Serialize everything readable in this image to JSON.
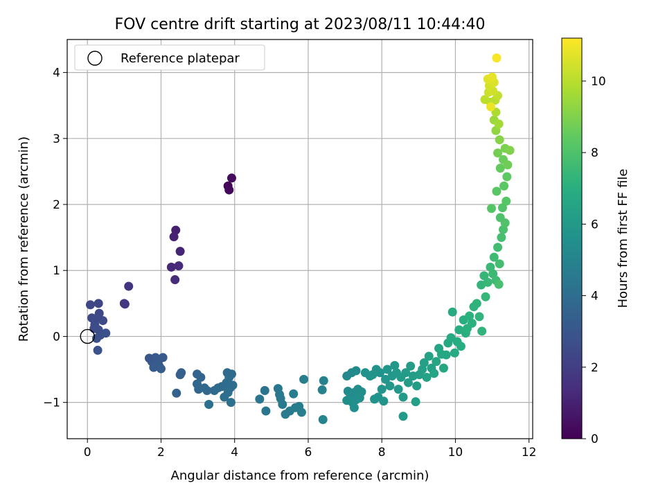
{
  "chart_data": {
    "type": "scatter",
    "title": "FOV centre drift starting at 2023/08/11 10:44:40",
    "xlabel": "Angular distance from reference (arcmin)",
    "ylabel": "Rotation from reference (arcmin)",
    "colorbar_label": "Hours from first FF file",
    "xlim": [
      -0.55,
      12.1
    ],
    "ylim": [
      -1.55,
      4.5
    ],
    "clim": [
      0,
      11.2
    ],
    "x_ticks": [
      0,
      2,
      4,
      6,
      8,
      10,
      12
    ],
    "y_ticks": [
      -1,
      0,
      1,
      2,
      3,
      4
    ],
    "colorbar_ticks": [
      0,
      2,
      4,
      6,
      8,
      10
    ],
    "grid": true,
    "legend": {
      "position": "top-left",
      "entries": [
        "Reference platepar"
      ]
    },
    "reference_point": {
      "x": 0,
      "y": 0
    },
    "colormap": "viridis",
    "points": [
      {
        "x": 3.82,
        "y": 2.28,
        "c": 0.1
      },
      {
        "x": 3.85,
        "y": 2.22,
        "c": 0.2
      },
      {
        "x": 3.92,
        "y": 2.4,
        "c": 0.3
      },
      {
        "x": 2.4,
        "y": 1.61,
        "c": 0.9
      },
      {
        "x": 2.35,
        "y": 1.51,
        "c": 1.0
      },
      {
        "x": 2.52,
        "y": 1.29,
        "c": 1.1
      },
      {
        "x": 2.28,
        "y": 1.05,
        "c": 1.2
      },
      {
        "x": 2.48,
        "y": 1.07,
        "c": 1.25
      },
      {
        "x": 2.38,
        "y": 0.86,
        "c": 1.3
      },
      {
        "x": 1.12,
        "y": 0.76,
        "c": 1.6
      },
      {
        "x": 1.0,
        "y": 0.5,
        "c": 1.7
      },
      {
        "x": 1.02,
        "y": 0.49,
        "c": 1.75
      },
      {
        "x": 0.08,
        "y": 0.48,
        "c": 2.3
      },
      {
        "x": 0.3,
        "y": 0.5,
        "c": 2.3
      },
      {
        "x": 0.32,
        "y": 0.35,
        "c": 2.4
      },
      {
        "x": 0.12,
        "y": 0.28,
        "c": 2.4
      },
      {
        "x": 0.22,
        "y": 0.27,
        "c": 2.5
      },
      {
        "x": 0.42,
        "y": 0.24,
        "c": 2.5
      },
      {
        "x": 0.2,
        "y": 0.18,
        "c": 2.55
      },
      {
        "x": 0.18,
        "y": 0.12,
        "c": 2.6
      },
      {
        "x": 0.3,
        "y": 0.1,
        "c": 2.6
      },
      {
        "x": 0.35,
        "y": 0.02,
        "c": 2.65
      },
      {
        "x": 0.5,
        "y": 0.05,
        "c": 2.7
      },
      {
        "x": 0.25,
        "y": -0.03,
        "c": 2.7
      },
      {
        "x": 0.28,
        "y": -0.21,
        "c": 2.8
      },
      {
        "x": 1.68,
        "y": -0.33,
        "c": 3.0
      },
      {
        "x": 1.75,
        "y": -0.38,
        "c": 3.05
      },
      {
        "x": 1.85,
        "y": -0.32,
        "c": 3.1
      },
      {
        "x": 1.92,
        "y": -0.4,
        "c": 3.1
      },
      {
        "x": 2.05,
        "y": -0.32,
        "c": 3.15
      },
      {
        "x": 1.8,
        "y": -0.47,
        "c": 3.2
      },
      {
        "x": 1.88,
        "y": -0.44,
        "c": 3.2
      },
      {
        "x": 1.95,
        "y": -0.45,
        "c": 3.25
      },
      {
        "x": 2.0,
        "y": -0.49,
        "c": 3.3
      },
      {
        "x": 2.55,
        "y": -0.55,
        "c": 3.4
      },
      {
        "x": 2.52,
        "y": -0.58,
        "c": 3.4
      },
      {
        "x": 2.42,
        "y": -0.86,
        "c": 3.5
      },
      {
        "x": 2.98,
        "y": -0.57,
        "c": 3.6
      },
      {
        "x": 3.08,
        "y": -0.62,
        "c": 3.6
      },
      {
        "x": 2.98,
        "y": -0.72,
        "c": 3.7
      },
      {
        "x": 3.02,
        "y": -0.8,
        "c": 3.7
      },
      {
        "x": 3.18,
        "y": -0.78,
        "c": 3.75
      },
      {
        "x": 3.25,
        "y": -0.82,
        "c": 3.8
      },
      {
        "x": 3.45,
        "y": -0.82,
        "c": 3.8
      },
      {
        "x": 3.55,
        "y": -0.78,
        "c": 3.85
      },
      {
        "x": 3.65,
        "y": -0.76,
        "c": 3.85
      },
      {
        "x": 3.8,
        "y": -0.55,
        "c": 3.9
      },
      {
        "x": 3.92,
        "y": -0.57,
        "c": 3.9
      },
      {
        "x": 3.85,
        "y": -0.62,
        "c": 3.95
      },
      {
        "x": 3.78,
        "y": -0.7,
        "c": 3.95
      },
      {
        "x": 3.88,
        "y": -0.78,
        "c": 4.0
      },
      {
        "x": 3.95,
        "y": -0.74,
        "c": 4.0
      },
      {
        "x": 3.82,
        "y": -0.85,
        "c": 4.05
      },
      {
        "x": 3.72,
        "y": -0.92,
        "c": 4.05
      },
      {
        "x": 3.3,
        "y": -1.03,
        "c": 4.1
      },
      {
        "x": 3.9,
        "y": -1.0,
        "c": 4.1
      },
      {
        "x": 4.82,
        "y": -0.82,
        "c": 4.3
      },
      {
        "x": 4.68,
        "y": -0.95,
        "c": 4.35
      },
      {
        "x": 4.85,
        "y": -1.13,
        "c": 4.4
      },
      {
        "x": 5.18,
        "y": -0.79,
        "c": 4.45
      },
      {
        "x": 5.22,
        "y": -0.88,
        "c": 4.5
      },
      {
        "x": 5.25,
        "y": -0.94,
        "c": 4.5
      },
      {
        "x": 5.3,
        "y": -1.03,
        "c": 4.55
      },
      {
        "x": 5.38,
        "y": -1.18,
        "c": 4.6
      },
      {
        "x": 5.5,
        "y": -1.13,
        "c": 4.6
      },
      {
        "x": 5.6,
        "y": -0.87,
        "c": 4.65
      },
      {
        "x": 5.65,
        "y": -1.08,
        "c": 4.7
      },
      {
        "x": 5.75,
        "y": -1.06,
        "c": 4.7
      },
      {
        "x": 5.82,
        "y": -1.15,
        "c": 4.75
      },
      {
        "x": 5.88,
        "y": -0.65,
        "c": 4.8
      },
      {
        "x": 6.38,
        "y": -0.81,
        "c": 4.9
      },
      {
        "x": 6.42,
        "y": -0.67,
        "c": 4.9
      },
      {
        "x": 6.4,
        "y": -1.26,
        "c": 5.0
      },
      {
        "x": 7.05,
        "y": -0.6,
        "c": 5.2
      },
      {
        "x": 7.18,
        "y": -0.55,
        "c": 5.25
      },
      {
        "x": 7.3,
        "y": -0.52,
        "c": 5.3
      },
      {
        "x": 7.08,
        "y": -0.83,
        "c": 5.3
      },
      {
        "x": 7.15,
        "y": -0.9,
        "c": 5.35
      },
      {
        "x": 7.25,
        "y": -0.85,
        "c": 5.35
      },
      {
        "x": 7.35,
        "y": -0.8,
        "c": 5.4
      },
      {
        "x": 7.45,
        "y": -0.84,
        "c": 5.4
      },
      {
        "x": 7.05,
        "y": -0.97,
        "c": 5.45
      },
      {
        "x": 7.2,
        "y": -1.0,
        "c": 5.45
      },
      {
        "x": 7.3,
        "y": -0.96,
        "c": 5.5
      },
      {
        "x": 7.4,
        "y": -0.93,
        "c": 5.5
      },
      {
        "x": 7.25,
        "y": -1.08,
        "c": 5.55
      },
      {
        "x": 7.55,
        "y": -0.55,
        "c": 5.6
      },
      {
        "x": 7.68,
        "y": -0.6,
        "c": 5.6
      },
      {
        "x": 7.8,
        "y": -0.95,
        "c": 5.65
      },
      {
        "x": 7.9,
        "y": -0.92,
        "c": 5.65
      },
      {
        "x": 7.95,
        "y": -0.55,
        "c": 5.7
      },
      {
        "x": 7.85,
        "y": -0.5,
        "c": 5.7
      },
      {
        "x": 8.0,
        "y": -0.8,
        "c": 5.75
      },
      {
        "x": 8.05,
        "y": -0.98,
        "c": 5.75
      },
      {
        "x": 7.75,
        "y": -0.58,
        "c": 5.8
      },
      {
        "x": 8.1,
        "y": -0.65,
        "c": 5.85
      },
      {
        "x": 8.15,
        "y": -0.5,
        "c": 5.85
      },
      {
        "x": 8.22,
        "y": -0.75,
        "c": 5.9
      },
      {
        "x": 8.28,
        "y": -0.6,
        "c": 5.9
      },
      {
        "x": 8.35,
        "y": -0.44,
        "c": 5.95
      },
      {
        "x": 8.4,
        "y": -0.55,
        "c": 6.0
      },
      {
        "x": 8.45,
        "y": -0.8,
        "c": 6.0
      },
      {
        "x": 8.52,
        "y": -0.62,
        "c": 6.05
      },
      {
        "x": 8.58,
        "y": -0.92,
        "c": 6.05
      },
      {
        "x": 8.58,
        "y": -1.21,
        "c": 6.1
      },
      {
        "x": 8.65,
        "y": -0.55,
        "c": 6.1
      },
      {
        "x": 8.72,
        "y": -0.7,
        "c": 6.15
      },
      {
        "x": 8.78,
        "y": -0.45,
        "c": 6.15
      },
      {
        "x": 8.85,
        "y": -0.6,
        "c": 6.2
      },
      {
        "x": 8.95,
        "y": -0.75,
        "c": 6.2
      },
      {
        "x": 8.92,
        "y": -0.99,
        "c": 6.25
      },
      {
        "x": 9.02,
        "y": -0.58,
        "c": 6.25
      },
      {
        "x": 9.1,
        "y": -0.5,
        "c": 6.3
      },
      {
        "x": 9.15,
        "y": -0.4,
        "c": 6.3
      },
      {
        "x": 9.22,
        "y": -0.62,
        "c": 6.35
      },
      {
        "x": 9.28,
        "y": -0.3,
        "c": 6.4
      },
      {
        "x": 9.35,
        "y": -0.48,
        "c": 6.4
      },
      {
        "x": 9.42,
        "y": -0.56,
        "c": 6.45
      },
      {
        "x": 9.48,
        "y": -0.38,
        "c": 6.5
      },
      {
        "x": 9.55,
        "y": -0.18,
        "c": 6.55
      },
      {
        "x": 9.62,
        "y": -0.27,
        "c": 6.6
      },
      {
        "x": 9.68,
        "y": -0.48,
        "c": 6.6
      },
      {
        "x": 9.75,
        "y": -0.28,
        "c": 6.65
      },
      {
        "x": 9.8,
        "y": -0.1,
        "c": 6.7
      },
      {
        "x": 9.88,
        "y": -0.02,
        "c": 6.75
      },
      {
        "x": 9.92,
        "y": 0.37,
        "c": 6.8
      },
      {
        "x": 9.98,
        "y": -0.25,
        "c": 6.8
      },
      {
        "x": 10.05,
        "y": -0.08,
        "c": 6.85
      },
      {
        "x": 10.1,
        "y": 0.1,
        "c": 6.9
      },
      {
        "x": 10.15,
        "y": -0.15,
        "c": 6.9
      },
      {
        "x": 10.22,
        "y": 0.25,
        "c": 6.95
      },
      {
        "x": 10.28,
        "y": 0.05,
        "c": 7.0
      },
      {
        "x": 10.32,
        "y": 0.12,
        "c": 7.05
      },
      {
        "x": 10.38,
        "y": 0.31,
        "c": 7.1
      },
      {
        "x": 10.45,
        "y": 0.2,
        "c": 7.1
      },
      {
        "x": 10.5,
        "y": 0.45,
        "c": 7.15
      },
      {
        "x": 10.58,
        "y": 0.5,
        "c": 7.2
      },
      {
        "x": 10.65,
        "y": 0.3,
        "c": 7.25
      },
      {
        "x": 10.72,
        "y": 0.08,
        "c": 7.25
      },
      {
        "x": 10.7,
        "y": 0.78,
        "c": 7.3
      },
      {
        "x": 10.78,
        "y": 0.92,
        "c": 7.35
      },
      {
        "x": 10.82,
        "y": 0.6,
        "c": 7.4
      },
      {
        "x": 10.88,
        "y": 0.82,
        "c": 7.45
      },
      {
        "x": 10.95,
        "y": 1.05,
        "c": 7.5
      },
      {
        "x": 11.02,
        "y": 0.95,
        "c": 7.55
      },
      {
        "x": 11.05,
        "y": 1.2,
        "c": 7.6
      },
      {
        "x": 11.1,
        "y": 0.85,
        "c": 7.65
      },
      {
        "x": 11.15,
        "y": 1.35,
        "c": 7.7
      },
      {
        "x": 11.2,
        "y": 1.1,
        "c": 7.75
      },
      {
        "x": 11.25,
        "y": 1.5,
        "c": 7.8
      },
      {
        "x": 11.18,
        "y": 0.79,
        "c": 7.85
      },
      {
        "x": 11.3,
        "y": 1.62,
        "c": 7.9
      },
      {
        "x": 11.22,
        "y": 1.8,
        "c": 8.0
      },
      {
        "x": 11.35,
        "y": 1.72,
        "c": 8.05
      },
      {
        "x": 11.28,
        "y": 1.95,
        "c": 8.1
      },
      {
        "x": 10.98,
        "y": 1.94,
        "c": 8.15
      },
      {
        "x": 11.38,
        "y": 2.05,
        "c": 8.2
      },
      {
        "x": 11.12,
        "y": 2.2,
        "c": 8.25
      },
      {
        "x": 11.32,
        "y": 2.28,
        "c": 8.3
      },
      {
        "x": 11.4,
        "y": 2.42,
        "c": 8.4
      },
      {
        "x": 11.22,
        "y": 2.55,
        "c": 8.5
      },
      {
        "x": 11.3,
        "y": 2.68,
        "c": 8.6
      },
      {
        "x": 11.42,
        "y": 2.6,
        "c": 8.7
      },
      {
        "x": 11.15,
        "y": 2.78,
        "c": 8.8
      },
      {
        "x": 11.35,
        "y": 2.85,
        "c": 8.9
      },
      {
        "x": 11.48,
        "y": 2.82,
        "c": 9.0
      },
      {
        "x": 11.2,
        "y": 2.98,
        "c": 9.1
      },
      {
        "x": 11.1,
        "y": 3.12,
        "c": 9.3
      },
      {
        "x": 11.05,
        "y": 3.28,
        "c": 9.5
      },
      {
        "x": 11.18,
        "y": 3.22,
        "c": 9.6
      },
      {
        "x": 11.1,
        "y": 3.4,
        "c": 9.8
      },
      {
        "x": 10.95,
        "y": 3.55,
        "c": 9.9
      },
      {
        "x": 11.08,
        "y": 3.58,
        "c": 10.0
      },
      {
        "x": 10.8,
        "y": 3.59,
        "c": 10.1
      },
      {
        "x": 11.15,
        "y": 3.65,
        "c": 10.2
      },
      {
        "x": 10.9,
        "y": 3.7,
        "c": 10.3
      },
      {
        "x": 11.02,
        "y": 3.72,
        "c": 10.4
      },
      {
        "x": 10.92,
        "y": 3.8,
        "c": 10.5
      },
      {
        "x": 11.05,
        "y": 3.85,
        "c": 10.6
      },
      {
        "x": 10.88,
        "y": 3.9,
        "c": 10.7
      },
      {
        "x": 11.0,
        "y": 3.93,
        "c": 10.8
      },
      {
        "x": 10.96,
        "y": 3.48,
        "c": 10.9
      },
      {
        "x": 11.12,
        "y": 4.22,
        "c": 11.1
      }
    ]
  }
}
